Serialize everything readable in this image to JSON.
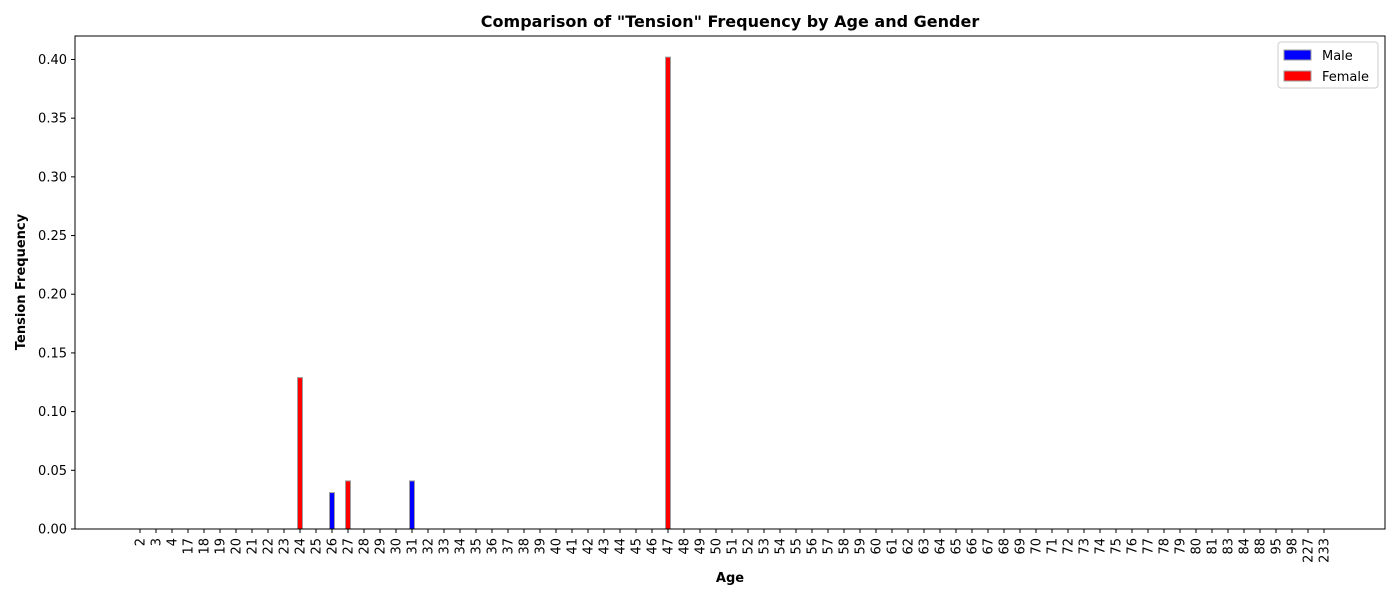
{
  "chart_data": {
    "type": "bar",
    "title": "Comparison of \"Tension\" Frequency by Age and Gender",
    "xlabel": "Age",
    "ylabel": "Tension Frequency",
    "ylim": [
      0,
      0.42
    ],
    "yticks": [
      "0.00",
      "0.05",
      "0.10",
      "0.15",
      "0.20",
      "0.25",
      "0.30",
      "0.35",
      "0.40"
    ],
    "categories": [
      "2",
      "3",
      "4",
      "17",
      "18",
      "19",
      "20",
      "21",
      "22",
      "23",
      "24",
      "25",
      "26",
      "27",
      "28",
      "29",
      "30",
      "31",
      "32",
      "33",
      "34",
      "35",
      "36",
      "37",
      "38",
      "39",
      "40",
      "41",
      "42",
      "43",
      "44",
      "45",
      "46",
      "47",
      "48",
      "49",
      "50",
      "51",
      "52",
      "53",
      "54",
      "55",
      "56",
      "57",
      "58",
      "59",
      "60",
      "61",
      "62",
      "63",
      "64",
      "65",
      "66",
      "67",
      "68",
      "69",
      "70",
      "71",
      "72",
      "73",
      "74",
      "75",
      "76",
      "77",
      "78",
      "79",
      "80",
      "81",
      "83",
      "84",
      "88",
      "95",
      "98",
      "227",
      "233"
    ],
    "series": [
      {
        "name": "Male",
        "color": "#0000ff",
        "values": [
          0,
          0,
          0,
          0,
          0,
          0,
          0,
          0,
          0,
          0,
          0,
          0,
          0.031,
          0,
          0,
          0,
          0,
          0.041,
          0,
          0,
          0,
          0,
          0,
          0,
          0,
          0,
          0,
          0,
          0,
          0,
          0,
          0,
          0,
          0,
          0,
          0,
          0,
          0,
          0,
          0,
          0,
          0,
          0,
          0,
          0,
          0,
          0,
          0,
          0,
          0,
          0,
          0,
          0,
          0,
          0,
          0,
          0,
          0,
          0,
          0,
          0,
          0,
          0,
          0,
          0,
          0,
          0,
          0,
          0,
          0,
          0,
          0,
          0,
          0,
          0
        ]
      },
      {
        "name": "Female",
        "color": "#ff0000",
        "values": [
          0,
          0,
          0,
          0,
          0,
          0,
          0,
          0,
          0,
          0,
          0.129,
          0,
          0,
          0.041,
          0,
          0,
          0,
          0,
          0,
          0,
          0,
          0,
          0,
          0,
          0,
          0,
          0,
          0,
          0,
          0,
          0,
          0,
          0,
          0.402,
          0,
          0,
          0,
          0,
          0,
          0,
          0,
          0,
          0,
          0,
          0,
          0,
          0,
          0,
          0,
          0,
          0,
          0,
          0,
          0,
          0,
          0,
          0,
          0,
          0,
          0,
          0,
          0,
          0,
          0,
          0,
          0,
          0,
          0,
          0,
          0,
          0,
          0,
          0,
          0,
          0
        ]
      }
    ],
    "legend": "top-right",
    "grid": false
  }
}
